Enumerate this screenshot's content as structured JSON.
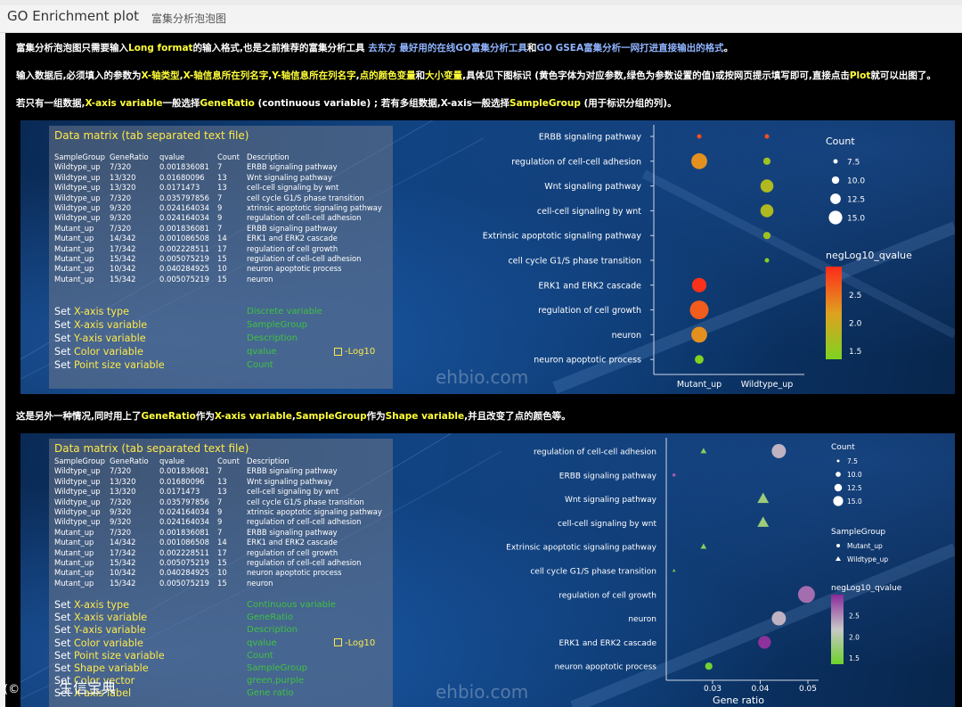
{
  "app": {
    "title": "GO Enrichment plot",
    "subtitle": "富集分析泡泡图"
  },
  "intro": {
    "line1": {
      "p1": "富集分析泡泡图只需要输入",
      "p2": "Long format",
      "p3": "的输入格式,也是之前推荐的富集分析工具 ",
      "p4": "去东方 最好用的在线GO富集分析工具",
      "p5": "和",
      "p6": "GO    GSEA富集分析一网打进直接输出的格式",
      "p7": "。"
    },
    "line2": {
      "p1": "输入数据后,必须填入的参数为",
      "p2": "X-轴类型",
      "p3": ",",
      "p4": "X-轴信息所在列名字",
      "p5": ",",
      "p6": "Y-轴信息所在列名字",
      "p7": ",",
      "p8": "点的颜色变量",
      "p9": "和",
      "p10": "大小变量",
      "p11": ",具体见下图标识 (黄色字体为对应参数,绿色为参数设置的值)或按网页提示填写即可,直接点击",
      "p12": "Plot",
      "p13": "就可以出图了。"
    },
    "line3": {
      "p1": "若只有一组数据,",
      "p2": "X-axis variable",
      "p3": "一般选择",
      "p4": "GeneRatio",
      "p5": " (continuous variable) ; 若有多组数据,X-axis一般选择",
      "p6": "SampleGroup",
      "p7": " (用于标识分组的列)。"
    },
    "line4": {
      "p1": "这是另外一种情况,同时用上了",
      "p2": "GeneRatio",
      "p3": "作为",
      "p4": "X-axis variable",
      "p5": ",",
      "p6": "SampleGroup",
      "p7": "作为",
      "p8": "Shape variable",
      "p9": ",并且改变了点的颜色等。"
    }
  },
  "matrix": {
    "title": "Data matrix (tab separated text file)",
    "header": [
      "SampleGroup",
      "GeneRatio",
      "qvalue",
      "Count",
      "Description"
    ],
    "rows": [
      [
        "Wildtype_up",
        "7/320",
        "0.001836081",
        "7",
        "ERBB signaling pathway"
      ],
      [
        "Wildtype_up",
        "13/320",
        "0.01680096",
        "13",
        "Wnt signaling pathway"
      ],
      [
        "Wildtype_up",
        "13/320",
        "0.0171473",
        "13",
        "cell-cell signaling by wnt"
      ],
      [
        "Wildtype_up",
        "7/320",
        "0.035797856",
        "7",
        "cell cycle G1/S phase transition"
      ],
      [
        "Wildtype_up",
        "9/320",
        "0.024164034",
        "9",
        "xtrinsic apoptotic signaling pathway"
      ],
      [
        "Wildtype_up",
        "9/320",
        "0.024164034",
        "9",
        "regulation of cell-cell adhesion"
      ],
      [
        "Mutant_up",
        "7/320",
        "0.001836081",
        "7",
        "ERBB signaling pathway"
      ],
      [
        "Mutant_up",
        "14/342",
        "0.001086508",
        "14",
        "ERK1 and ERK2 cascade"
      ],
      [
        "Mutant_up",
        "17/342",
        "0.002228511",
        "17",
        "regulation of cell growth"
      ],
      [
        "Mutant_up",
        "15/342",
        "0.005075219",
        "15",
        "regulation of cell-cell adhesion"
      ],
      [
        "Mutant_up",
        "10/342",
        "0.040284925",
        "10",
        "neuron apoptotic process"
      ],
      [
        "Mutant_up",
        "15/342",
        "0.005075219",
        "15",
        "neuron"
      ]
    ]
  },
  "settings1": [
    {
      "pre": "Set ",
      "label": "X-axis type",
      "value": "Discrete variable",
      "ext": ""
    },
    {
      "pre": "Set ",
      "label": "X-axis variable",
      "value": "SampleGroup",
      "ext": ""
    },
    {
      "pre": "Set ",
      "label": "Y-axis variable",
      "value": "Description",
      "ext": ""
    },
    {
      "pre": "Set ",
      "label": "Color variable",
      "value": "qvalue",
      "ext": "-Log10"
    },
    {
      "pre": "Set ",
      "label": "Point size variable",
      "value": "Count",
      "ext": ""
    }
  ],
  "settings2": [
    {
      "pre": "Set ",
      "label": "X-axis type",
      "value": "Continuous variable",
      "ext": ""
    },
    {
      "pre": "Set ",
      "label": "X-axis variable",
      "value": "GeneRatio",
      "ext": ""
    },
    {
      "pre": "Set ",
      "label": "Y-axis variable",
      "value": "Description",
      "ext": ""
    },
    {
      "pre": "Set ",
      "label": "Color variable",
      "value": "qvalue",
      "ext": "-Log10"
    },
    {
      "pre": "Set ",
      "label": "Point size variable",
      "value": "Count",
      "ext": ""
    },
    {
      "pre": "Set ",
      "label": "Shape variable",
      "value": "SampleGroup",
      "ext": ""
    },
    {
      "pre": "Set ",
      "label": "Color vector",
      "value": "green,purple",
      "ext": ""
    },
    {
      "pre": "Set ",
      "label": "X-axis label",
      "value": "Gene ratio",
      "ext": ""
    }
  ],
  "watermark": "ehbio.com",
  "bottom_logo": "生信宝典",
  "chart_data": [
    {
      "type": "scatter",
      "x_categories": [
        "Mutant_up",
        "Wildtype_up"
      ],
      "y_categories": [
        "ERBB signaling pathway",
        "regulation of cell-cell adhesion",
        "Wnt signaling pathway",
        "cell-cell signaling by wnt",
        "Extrinsic apoptotic signaling pathway",
        "cell cycle G1/S phase transition",
        "ERK1 and ERK2 cascade",
        "regulation of cell growth",
        "neuron",
        "neuron apoptotic process"
      ],
      "points": [
        {
          "x": "Mutant_up",
          "y": "ERBB signaling pathway",
          "count": 7,
          "neglog10q": 2.74
        },
        {
          "x": "Wildtype_up",
          "y": "ERBB signaling pathway",
          "count": 7,
          "neglog10q": 2.74
        },
        {
          "x": "Mutant_up",
          "y": "regulation of cell-cell adhesion",
          "count": 15,
          "neglog10q": 2.29
        },
        {
          "x": "Wildtype_up",
          "y": "regulation of cell-cell adhesion",
          "count": 9,
          "neglog10q": 1.62
        },
        {
          "x": "Wildtype_up",
          "y": "Wnt signaling pathway",
          "count": 13,
          "neglog10q": 1.77
        },
        {
          "x": "Wildtype_up",
          "y": "cell-cell signaling by wnt",
          "count": 13,
          "neglog10q": 1.77
        },
        {
          "x": "Wildtype_up",
          "y": "Extrinsic apoptotic signaling pathway",
          "count": 9,
          "neglog10q": 1.62
        },
        {
          "x": "Wildtype_up",
          "y": "cell cycle G1/S phase transition",
          "count": 7,
          "neglog10q": 1.45
        },
        {
          "x": "Mutant_up",
          "y": "ERK1 and ERK2 cascade",
          "count": 14,
          "neglog10q": 2.96
        },
        {
          "x": "Mutant_up",
          "y": "regulation of cell growth",
          "count": 17,
          "neglog10q": 2.65
        },
        {
          "x": "Mutant_up",
          "y": "neuron",
          "count": 15,
          "neglog10q": 2.29
        },
        {
          "x": "Mutant_up",
          "y": "neuron apoptotic process",
          "count": 10,
          "neglog10q": 1.39
        }
      ],
      "size_legend": {
        "title": "Count",
        "values": [
          7.5,
          10.0,
          12.5,
          15.0
        ]
      },
      "color_legend": {
        "title": "negLog10_qvalue",
        "ticks": [
          1.5,
          2.0,
          2.5
        ],
        "range": [
          1.35,
          3.0
        ],
        "low": "#7ed321",
        "mid": "#e0a020",
        "high": "#ff2a1a"
      },
      "legend": "right"
    },
    {
      "type": "scatter",
      "xlabel": "Gene ratio",
      "xticks": [
        0.03,
        0.04,
        0.05
      ],
      "xlim": [
        0.019,
        0.052
      ],
      "y_categories": [
        "regulation of cell-cell adhesion",
        "ERBB signaling pathway",
        "Wnt signaling pathway",
        "cell-cell signaling by wnt",
        "Extrinsic apoptotic signaling pathway",
        "cell cycle G1/S phase transition",
        "regulation of cell growth",
        "neuron",
        "ERK1 and ERK2 cascade",
        "neuron apoptotic process"
      ],
      "points": [
        {
          "y": "regulation of cell-cell adhesion",
          "x": 0.0281,
          "group": "Wildtype_up",
          "count": 9,
          "neglog10q": 1.62
        },
        {
          "y": "regulation of cell-cell adhesion",
          "x": 0.0439,
          "group": "Mutant_up",
          "count": 15,
          "neglog10q": 2.29
        },
        {
          "y": "ERBB signaling pathway",
          "x": 0.0219,
          "group": "Mutant_up",
          "count": 7,
          "neglog10q": 2.74
        },
        {
          "y": "Wnt signaling pathway",
          "x": 0.0406,
          "group": "Wildtype_up",
          "count": 13,
          "neglog10q": 1.77
        },
        {
          "y": "cell-cell signaling by wnt",
          "x": 0.0406,
          "group": "Wildtype_up",
          "count": 13,
          "neglog10q": 1.77
        },
        {
          "y": "Extrinsic apoptotic signaling pathway",
          "x": 0.0281,
          "group": "Wildtype_up",
          "count": 9,
          "neglog10q": 1.62
        },
        {
          "y": "cell cycle G1/S phase transition",
          "x": 0.0219,
          "group": "Wildtype_up",
          "count": 7,
          "neglog10q": 1.45
        },
        {
          "y": "regulation of cell growth",
          "x": 0.0497,
          "group": "Mutant_up",
          "count": 17,
          "neglog10q": 2.65
        },
        {
          "y": "neuron",
          "x": 0.0439,
          "group": "Mutant_up",
          "count": 15,
          "neglog10q": 2.29
        },
        {
          "y": "ERK1 and ERK2 cascade",
          "x": 0.0409,
          "group": "Mutant_up",
          "count": 14,
          "neglog10q": 2.96
        },
        {
          "y": "neuron apoptotic process",
          "x": 0.0292,
          "group": "Mutant_up",
          "count": 10,
          "neglog10q": 1.39
        }
      ],
      "size_legend": {
        "title": "Count",
        "values": [
          7.5,
          10.0,
          12.5,
          15.0
        ]
      },
      "shape_legend": {
        "title": "SampleGroup",
        "items": [
          {
            "name": "Mutant_up",
            "shape": "circle"
          },
          {
            "name": "Wildtype_up",
            "shape": "triangle"
          }
        ]
      },
      "color_legend": {
        "title": "negLog10_qvalue",
        "ticks": [
          1.5,
          2.0,
          2.5
        ],
        "range": [
          1.35,
          3.0
        ],
        "low": "#6fd12a",
        "mid": "#c8c8c8",
        "high": "#8a2a9a"
      },
      "legend": "right"
    }
  ]
}
